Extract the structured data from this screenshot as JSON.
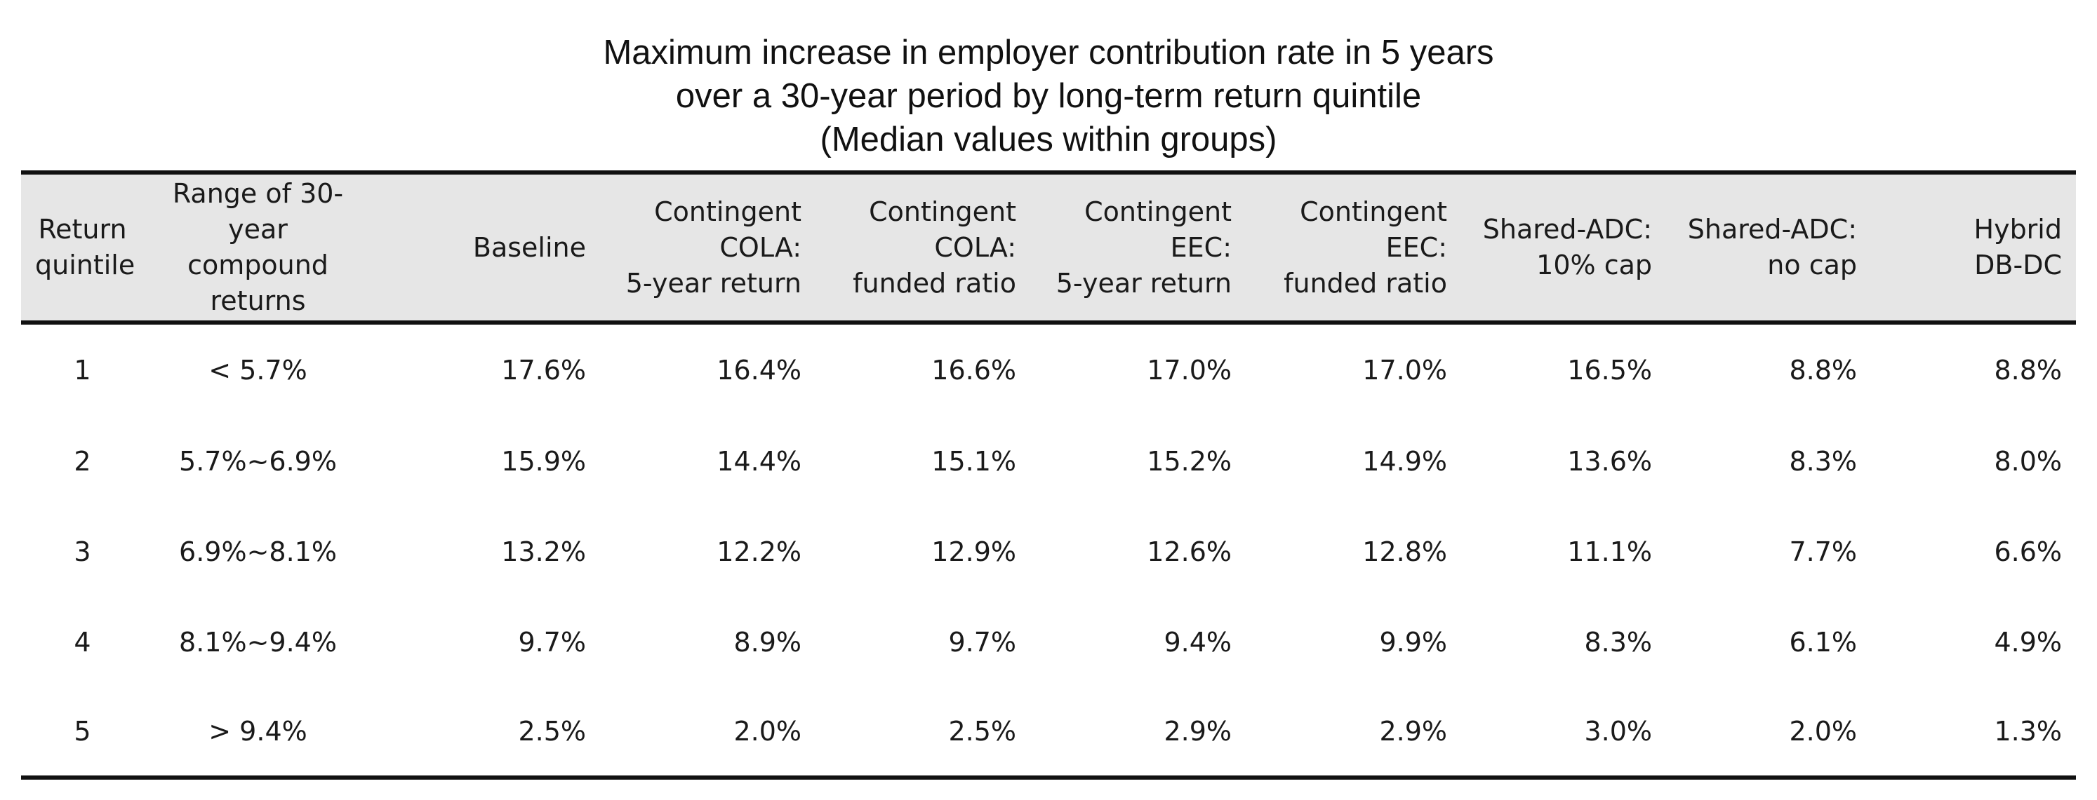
{
  "chart_data": {
    "type": "table",
    "title": "Maximum increase in employer contribution rate in 5 years\nover a 30-year period by long-term return quintile\n(Median values within groups)",
    "title_lines": [
      "Maximum increase in employer contribution rate in 5 years",
      "over a 30-year period by long-term return quintile",
      "(Median values within groups)"
    ],
    "columns": [
      "Return\nquintile",
      "Range of 30-year\ncompound\nreturns",
      "Baseline",
      "Contingent\nCOLA:\n5-year return",
      "Contingent\nCOLA:\nfunded ratio",
      "Contingent\nEEC:\n5-year return",
      "Contingent\nEEC:\nfunded ratio",
      "Shared-ADC:\n10% cap",
      "Shared-ADC:\nno cap",
      "Hybrid\nDB-DC"
    ],
    "rows": [
      [
        "1",
        "< 5.7%",
        "17.6%",
        "16.4%",
        "16.6%",
        "17.0%",
        "17.0%",
        "16.5%",
        "8.8%",
        "8.8%"
      ],
      [
        "2",
        "5.7%~6.9%",
        "15.9%",
        "14.4%",
        "15.1%",
        "15.2%",
        "14.9%",
        "13.6%",
        "8.3%",
        "8.0%"
      ],
      [
        "3",
        "6.9%~8.1%",
        "13.2%",
        "12.2%",
        "12.9%",
        "12.6%",
        "12.8%",
        "11.1%",
        "7.7%",
        "6.6%"
      ],
      [
        "4",
        "8.1%~9.4%",
        "9.7%",
        "8.9%",
        "9.7%",
        "9.4%",
        "9.9%",
        "8.3%",
        "6.1%",
        "4.9%"
      ],
      [
        "5",
        "> 9.4%",
        "2.5%",
        "2.0%",
        "2.5%",
        "2.9%",
        "2.9%",
        "3.0%",
        "2.0%",
        "1.3%"
      ]
    ],
    "header_background": "#e6e6e6",
    "rule_color": "#111111"
  }
}
